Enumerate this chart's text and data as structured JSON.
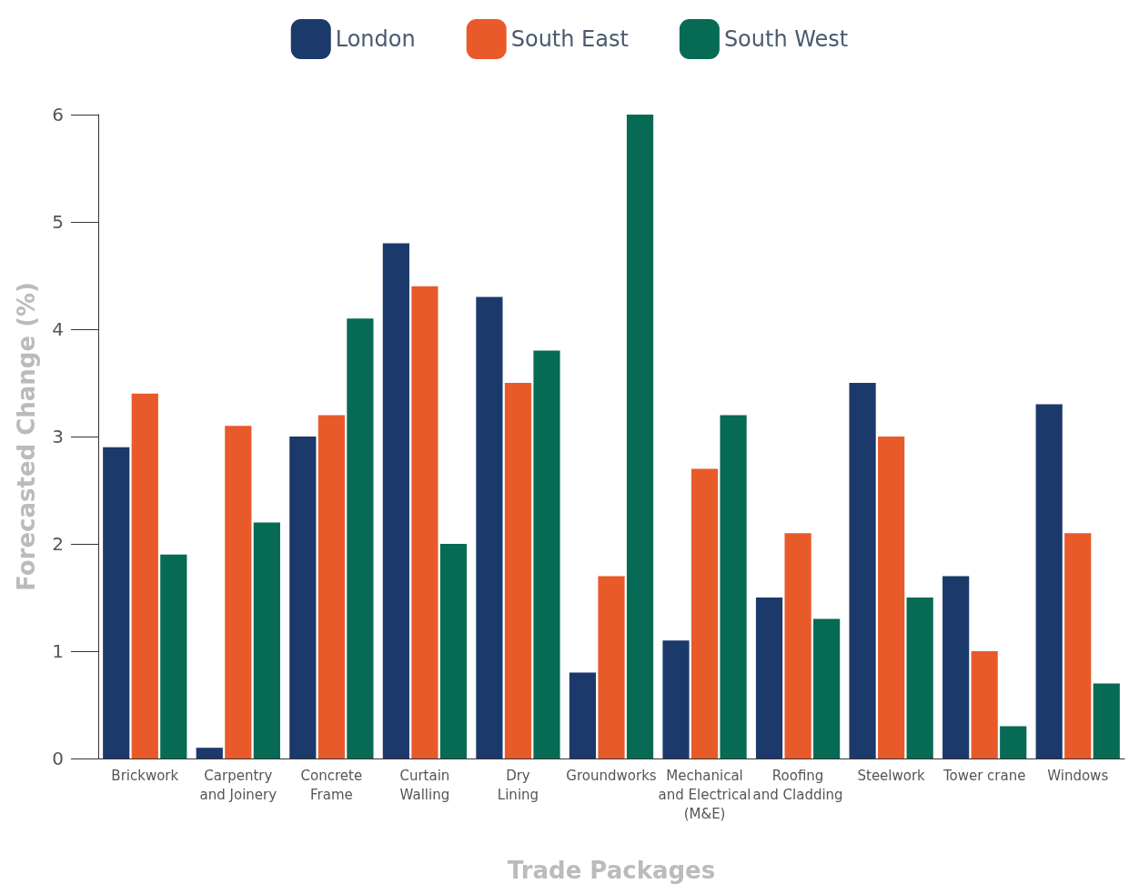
{
  "chart_data": {
    "type": "bar",
    "xlabel": "Trade Packages",
    "ylabel": "Forecasted Change (%)",
    "categories": [
      "Brickwork",
      "Carpentry\nand Joinery",
      "Concrete\nFrame",
      "Curtain\nWalling",
      "Dry\nLining",
      "Groundworks",
      "Mechanical\nand Electrical\n(M&E)",
      "Roofing\nand Cladding",
      "Steelwork",
      "Tower crane",
      "Windows"
    ],
    "series": [
      {
        "name": "London",
        "color": "#1b3a6b",
        "values": [
          2.9,
          0.1,
          3.0,
          4.8,
          4.3,
          0.8,
          1.1,
          1.5,
          3.5,
          1.7,
          3.3
        ]
      },
      {
        "name": "South East",
        "color": "#e95a2a",
        "values": [
          3.4,
          3.1,
          3.2,
          4.4,
          3.5,
          1.7,
          2.7,
          2.1,
          3.0,
          1.0,
          2.1
        ]
      },
      {
        "name": "South West",
        "color": "#066a55",
        "values": [
          1.9,
          2.2,
          4.1,
          2.0,
          3.8,
          6.0,
          3.2,
          1.3,
          1.5,
          0.3,
          0.7
        ]
      }
    ],
    "ylim": [
      0,
      6
    ],
    "yticks": [
      0,
      1,
      2,
      3,
      4,
      5,
      6
    ],
    "grid": false,
    "legend": "top"
  }
}
